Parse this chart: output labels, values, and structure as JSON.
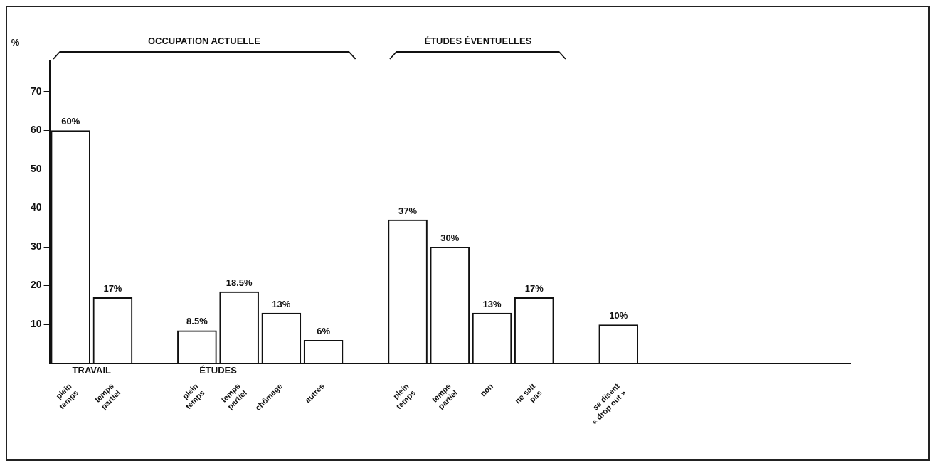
{
  "chart_data": {
    "type": "bar",
    "ylabel": "%",
    "categories": [
      "plein\ntemps",
      "temps\npartiel",
      null,
      "plein\ntemps",
      "temps\npartiel",
      "chômage",
      "autres",
      null,
      "plein\ntemps",
      "temps\npartiel",
      "non",
      "ne sait\npas",
      null,
      "se disent\n« drop out »",
      null,
      null,
      null,
      null,
      null
    ],
    "values": [
      60,
      17,
      null,
      8.5,
      18.5,
      13,
      6,
      null,
      37,
      30,
      13,
      17,
      null,
      10,
      null,
      null,
      null,
      null,
      null
    ],
    "value_labels": [
      "60%",
      "17%",
      null,
      "8.5%",
      "18.5%",
      "13%",
      "6%",
      null,
      "37%",
      "30%",
      "13%",
      "17%",
      null,
      "10%",
      null,
      null,
      null,
      null,
      null
    ],
    "color": "#111111",
    "ylim": [
      0,
      78
    ],
    "yticks": [
      10,
      20,
      30,
      40,
      50,
      60,
      70
    ],
    "grid": false,
    "legend": false,
    "annotations": [
      "OCCUPATION ACTUELLE",
      "ÉTUDES ÉVENTUELLES",
      "TRAVAIL",
      "ÉTUDES"
    ]
  }
}
